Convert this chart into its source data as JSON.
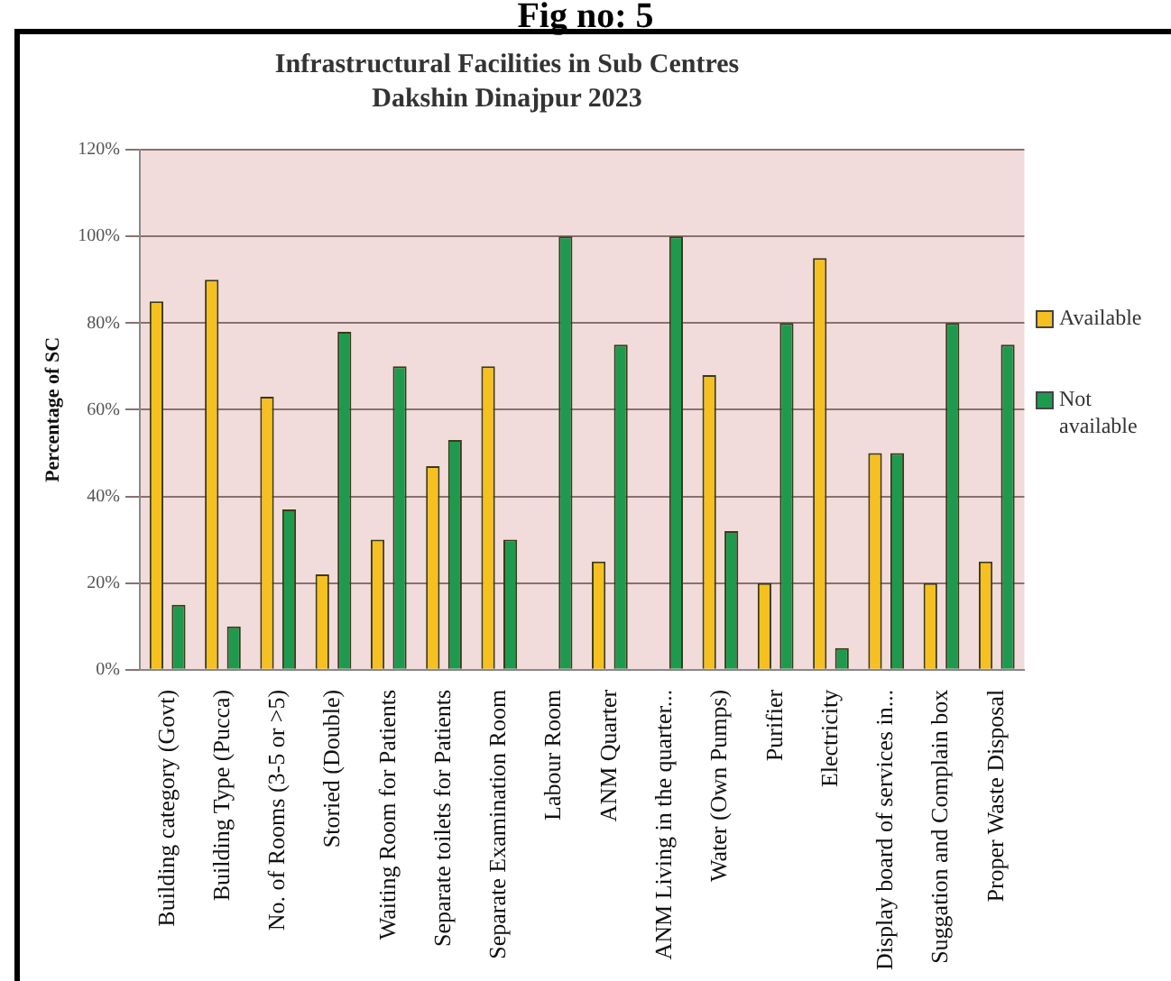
{
  "chart_data": {
    "type": "bar",
    "title": [
      "Infrastructural  Facilities in Sub Centres",
      "Dakshin Dinajpur  2023"
    ],
    "ylabel": "Percentage of SC",
    "annotations": [
      "Fig no: 5"
    ],
    "categories": [
      "Building category (Govt)",
      "Building Type (Pucca)",
      "No. of Rooms (3-5 or >5)",
      "Storied (Double)",
      "Waiting Room for Patients",
      "Separate toilets for Patients",
      "Separate Examination Room",
      "Labour Room",
      "ANM Quarter",
      "ANM Living in the quarter...",
      "Water (Own Pumps)",
      "Purifier",
      "Electricity",
      "Display board of services in...",
      "Suggation and Complain box",
      "Proper Waste Disposal"
    ],
    "series": [
      {
        "name": "Available",
        "color": "#f5c020",
        "values": [
          85,
          90,
          63,
          22,
          30,
          47,
          70,
          0,
          25,
          0,
          68,
          20,
          95,
          50,
          20,
          25
        ]
      },
      {
        "name": "Not available",
        "color": "#1e9a4e",
        "values": [
          15,
          10,
          37,
          78,
          70,
          53,
          30,
          100,
          75,
          100,
          32,
          80,
          5,
          50,
          80,
          75
        ]
      }
    ],
    "ylim": [
      0,
      120
    ],
    "yticks": [
      {
        "value": 0,
        "label": "0%"
      },
      {
        "value": 20,
        "label": "20%"
      },
      {
        "value": 40,
        "label": "40%"
      },
      {
        "value": 60,
        "label": "60%"
      },
      {
        "value": 80,
        "label": "80%"
      },
      {
        "value": 100,
        "label": "100%"
      },
      {
        "value": 120,
        "label": "120%"
      }
    ],
    "grid": "y",
    "legend": "right"
  }
}
